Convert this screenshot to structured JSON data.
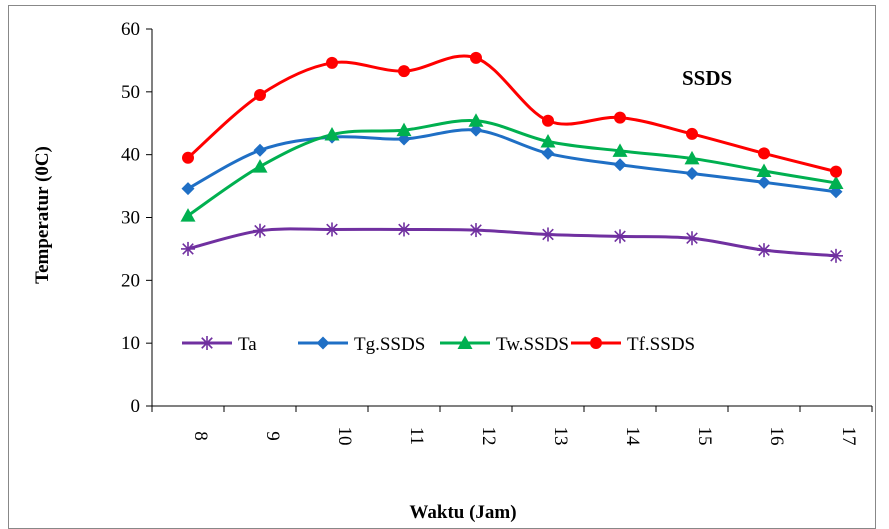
{
  "chart_data": {
    "type": "line",
    "title": "SSDS",
    "xlabel": "Waktu (Jam)",
    "ylabel": "Temperatur (0C)",
    "categories": [
      "8",
      "9",
      "10",
      "11",
      "12",
      "13",
      "14",
      "15",
      "16",
      "17"
    ],
    "ylim": [
      0,
      60
    ],
    "yticks": [
      "0",
      "10",
      "20",
      "30",
      "40",
      "50",
      "60"
    ],
    "grid": false,
    "legend_position": "inside-center-left",
    "series": [
      {
        "name": "Ta",
        "color": "#7030A0",
        "marker": "star",
        "values": [
          25.0,
          27.9,
          28.1,
          28.1,
          28.0,
          27.3,
          27.0,
          26.7,
          24.8,
          23.9
        ]
      },
      {
        "name": "Tg.SSDS",
        "color": "#1F6FC5",
        "marker": "diamond",
        "values": [
          34.6,
          40.7,
          42.8,
          42.5,
          43.9,
          40.2,
          38.4,
          37.0,
          35.6,
          34.1
        ]
      },
      {
        "name": "Tw.SSDS",
        "color": "#00B050",
        "marker": "triangle",
        "values": [
          30.3,
          38.1,
          43.2,
          43.9,
          45.4,
          42.1,
          40.6,
          39.4,
          37.4,
          35.5
        ]
      },
      {
        "name": "Tf.SSDS",
        "color": "#FF0000",
        "marker": "circle",
        "values": [
          39.5,
          49.5,
          54.6,
          53.3,
          55.4,
          45.4,
          45.9,
          43.3,
          40.2,
          37.3
        ]
      }
    ]
  }
}
